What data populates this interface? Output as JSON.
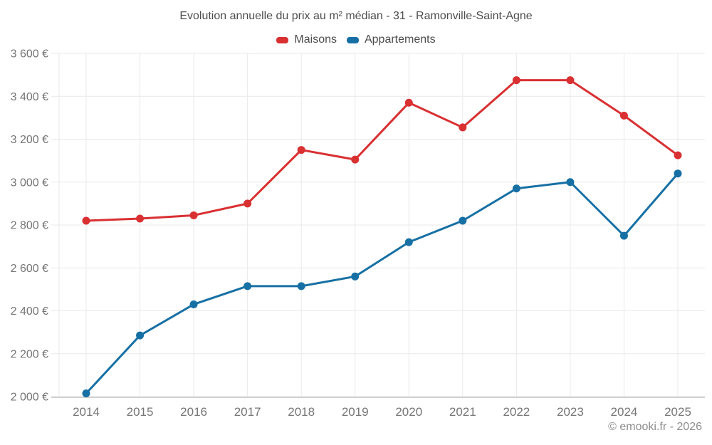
{
  "header": {
    "title": "Evolution annuelle du prix au m² médian - 31 - Ramonville-Saint-Agne"
  },
  "footer": {
    "credit": "© emooki.fr - 2026"
  },
  "colors": {
    "maisons": "#d93032",
    "appartements": "#1770a4",
    "grid": "#e9e9e9",
    "axis": "#c4c4c4",
    "tick_label": "#757575",
    "title_text": "#4d4d4d",
    "footer_text": "#8d8d8d"
  },
  "chart_data": {
    "type": "line",
    "title": "Evolution annuelle du prix au m² médian - 31 - Ramonville-Saint-Agne",
    "x": [
      2014,
      2015,
      2016,
      2017,
      2018,
      2019,
      2020,
      2021,
      2022,
      2023,
      2024,
      2025
    ],
    "series": [
      {
        "name": "Maisons",
        "color": "#d93032",
        "values": [
          2820,
          2830,
          2845,
          2900,
          3150,
          3105,
          3370,
          3255,
          3475,
          3475,
          3310,
          3125
        ]
      },
      {
        "name": "Appartements",
        "color": "#1770a4",
        "values": [
          2015,
          2285,
          2430,
          2515,
          2515,
          2560,
          2720,
          2820,
          2970,
          3000,
          2750,
          3040
        ]
      }
    ],
    "ylim": [
      2000,
      3600
    ],
    "ytick_step": 200,
    "y_tick_labels": [
      "3 600 €",
      "3 400 €",
      "3 200 €",
      "3 000 €",
      "2 800 €",
      "2 600 €",
      "2 400 €",
      "2 200 €",
      "2 000 €"
    ],
    "x_tick_labels": [
      "2014",
      "2015",
      "2016",
      "2017",
      "2018",
      "2019",
      "2020",
      "2021",
      "2022",
      "2023",
      "2024",
      "2025"
    ],
    "grid": true,
    "legend_position": "top",
    "xlabel": "",
    "ylabel": ""
  }
}
